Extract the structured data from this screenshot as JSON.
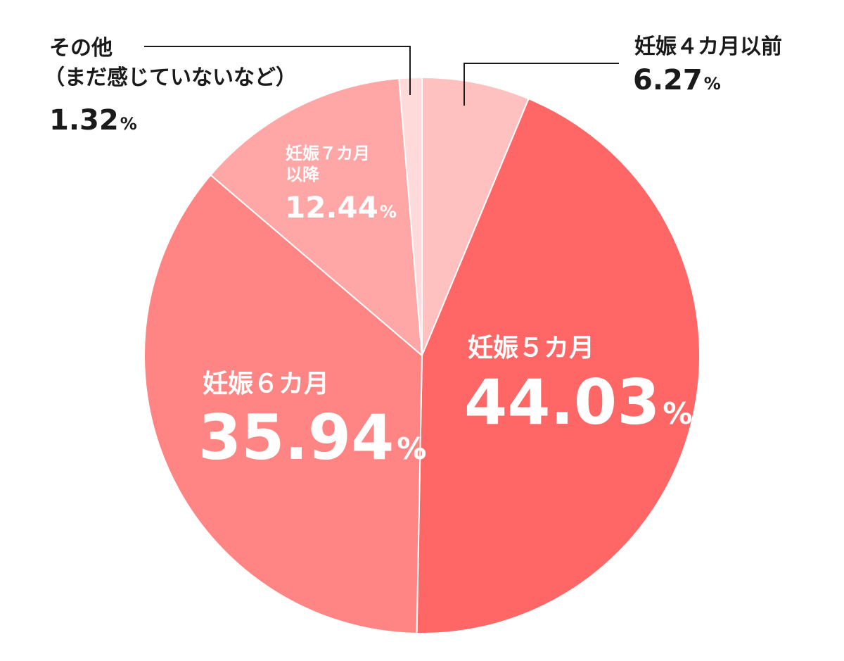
{
  "chart_data": {
    "type": "pie",
    "title": "",
    "unit": "%",
    "slices": [
      {
        "label": "妊娠４カ月以前",
        "value": 6.27,
        "value_text": "6.27",
        "color": "#ffc0c0"
      },
      {
        "label": "妊娠５カ月",
        "value": 44.03,
        "value_text": "44.03",
        "color": "#ff6666"
      },
      {
        "label": "妊娠６カ月",
        "value": 35.94,
        "value_text": "35.94",
        "color": "#ff8585"
      },
      {
        "label_lines": [
          "妊娠７カ月",
          "以降"
        ],
        "value": 12.44,
        "value_text": "12.44",
        "color": "#ffa6a6"
      },
      {
        "label_lines": [
          "その他",
          "（まだ感じていないなど）"
        ],
        "value": 1.32,
        "value_text": "1.32",
        "color": "#ffdada"
      }
    ]
  }
}
